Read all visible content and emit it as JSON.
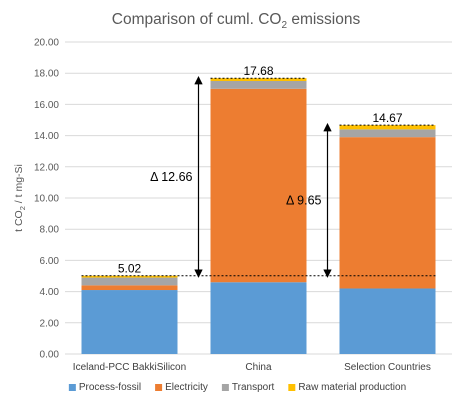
{
  "chart_data": {
    "type": "bar",
    "stacked": true,
    "title_main": "Comparison of cuml. CO",
    "title_sub": "2",
    "title_tail": " emissions",
    "ylabel_main": "t CO",
    "ylabel_sub": "2",
    "ylabel_tail": " / t mg-Si",
    "xlabel": "",
    "ylim": [
      0,
      20
    ],
    "ytick_step": 2,
    "ytick_labels": [
      "0.00",
      "2.00",
      "4.00",
      "6.00",
      "8.00",
      "10.00",
      "12.00",
      "14.00",
      "16.00",
      "18.00",
      "20.00"
    ],
    "grid": true,
    "legend_position": "bottom",
    "categories": [
      "Iceland-PCC BakkiSilicon",
      "China",
      "Selection Countries"
    ],
    "series": [
      {
        "name": "Process-fossil",
        "color": "#5b9bd5",
        "values": [
          4.1,
          4.6,
          4.2
        ]
      },
      {
        "name": "Electricity",
        "color": "#ed7d31",
        "values": [
          0.3,
          12.4,
          9.7
        ]
      },
      {
        "name": "Transport",
        "color": "#a5a5a5",
        "values": [
          0.5,
          0.5,
          0.5
        ]
      },
      {
        "name": "Raw material production",
        "color": "#ffc000",
        "values": [
          0.12,
          0.18,
          0.27
        ]
      }
    ],
    "totals": [
      "5.02",
      "17.68",
      "14.67"
    ],
    "total_values": [
      5.02,
      17.68,
      14.67
    ],
    "reference_line": 5.02,
    "annotations": [
      {
        "label": "Δ 12.66",
        "category_index": 1,
        "from": 5.02,
        "to": 17.68
      },
      {
        "label": "Δ 9.65",
        "category_index": 2,
        "from": 5.02,
        "to": 14.67
      }
    ]
  }
}
